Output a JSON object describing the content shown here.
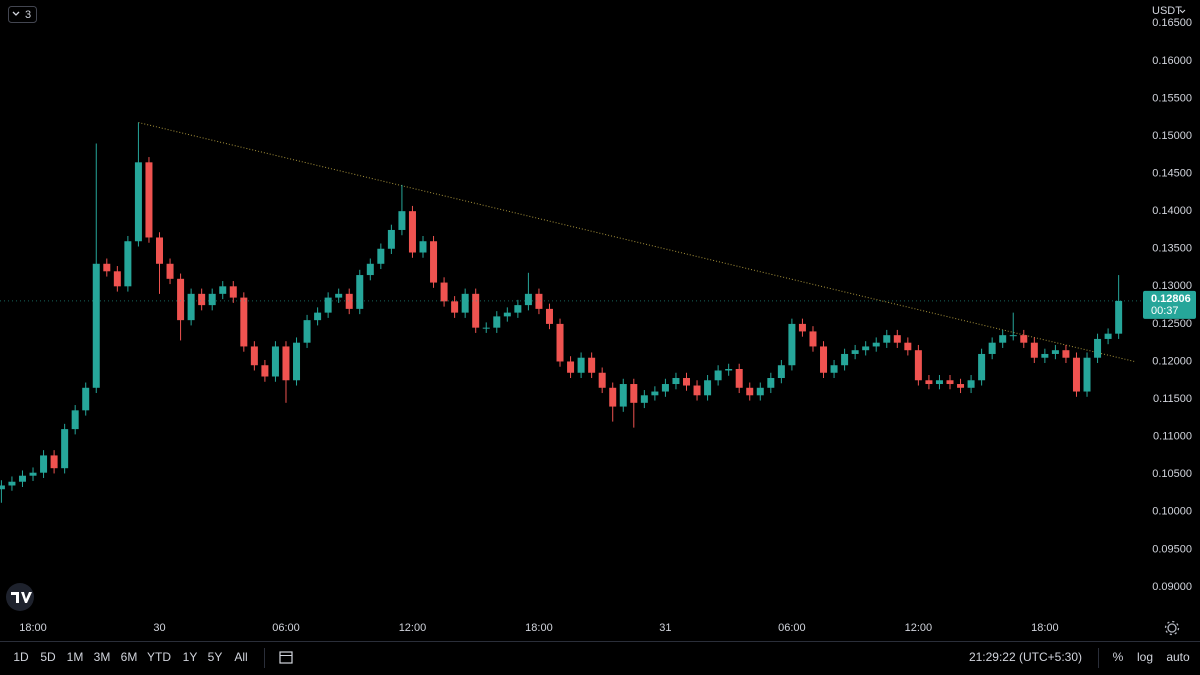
{
  "toolbar": {
    "interval_count": "3",
    "ranges": [
      "1D",
      "5D",
      "1M",
      "3M",
      "6M",
      "YTD",
      "1Y",
      "5Y",
      "All"
    ],
    "time": "21:29:22 (UTC+5:30)",
    "buttons": [
      "%",
      "log",
      "auto"
    ]
  },
  "chart_data": {
    "type": "candlestick",
    "currency": "USDT",
    "log_scale": false,
    "grid": false,
    "up_color": "#26a69a",
    "down_color": "#ef5350",
    "trendline_color": "#a8943c",
    "categories": [
      null,
      null,
      null,
      "18:00",
      null,
      null,
      null,
      null,
      null,
      null,
      null,
      null,
      null,
      null,
      null,
      "30",
      null,
      null,
      null,
      null,
      null,
      null,
      null,
      null,
      null,
      null,
      null,
      "06:00",
      null,
      null,
      null,
      null,
      null,
      null,
      null,
      null,
      null,
      null,
      null,
      "12:00",
      null,
      null,
      null,
      null,
      null,
      null,
      null,
      null,
      null,
      null,
      null,
      "18:00",
      null,
      null,
      null,
      null,
      null,
      null,
      null,
      null,
      null,
      null,
      null,
      "31",
      null,
      null,
      null,
      null,
      null,
      null,
      null,
      null,
      null,
      null,
      null,
      "06:00",
      null,
      null,
      null,
      null,
      null,
      null,
      null,
      null,
      null,
      null,
      null,
      "12:00",
      null,
      null,
      null,
      null,
      null,
      null,
      null,
      null,
      null,
      null,
      null,
      "18:00",
      null,
      null,
      null,
      null,
      null,
      null,
      null
    ],
    "open": [
      0.103,
      0.1035,
      0.104,
      0.1048,
      0.1052,
      0.1075,
      0.1058,
      0.111,
      0.1135,
      0.1165,
      0.133,
      0.132,
      0.13,
      0.136,
      0.1465,
      0.1365,
      0.133,
      0.131,
      0.1255,
      0.129,
      0.1275,
      0.129,
      0.13,
      0.1285,
      0.122,
      0.1195,
      0.118,
      0.122,
      0.1175,
      0.1225,
      0.1255,
      0.1265,
      0.1285,
      0.129,
      0.127,
      0.1315,
      0.133,
      0.135,
      0.1375,
      0.14,
      0.1345,
      0.136,
      0.1305,
      0.128,
      0.1265,
      0.129,
      0.1245,
      0.1245,
      0.126,
      0.1265,
      0.1275,
      0.129,
      0.127,
      0.125,
      0.12,
      0.1185,
      0.1205,
      0.1185,
      0.1165,
      0.114,
      0.117,
      0.1145,
      0.1155,
      0.116,
      0.117,
      0.1178,
      0.1168,
      0.1155,
      0.1175,
      0.1188,
      0.119,
      0.1165,
      0.1155,
      0.1165,
      0.1178,
      0.1195,
      0.125,
      0.124,
      0.122,
      0.1185,
      0.1195,
      0.121,
      0.1215,
      0.122,
      0.1225,
      0.1235,
      0.1225,
      0.1215,
      0.1175,
      0.117,
      0.1175,
      0.117,
      0.1165,
      0.1175,
      0.121,
      0.1225,
      0.1235,
      0.1235,
      0.1225,
      0.1205,
      0.121,
      0.1215,
      0.1205,
      0.116,
      0.1205,
      0.123,
      0.1237
    ],
    "high": [
      0.1042,
      0.1047,
      0.1055,
      0.1059,
      0.1082,
      0.1082,
      0.1117,
      0.1142,
      0.1172,
      0.149,
      0.1337,
      0.1327,
      0.1367,
      0.1518,
      0.1472,
      0.1372,
      0.1337,
      0.1317,
      0.1297,
      0.1297,
      0.1297,
      0.1307,
      0.1307,
      0.1292,
      0.1227,
      0.1202,
      0.1227,
      0.1227,
      0.1232,
      0.1262,
      0.1272,
      0.1292,
      0.1297,
      0.1297,
      0.1322,
      0.1337,
      0.1357,
      0.1382,
      0.1435,
      0.1407,
      0.1367,
      0.1367,
      0.1312,
      0.1287,
      0.1297,
      0.1297,
      0.1252,
      0.1267,
      0.1272,
      0.1282,
      0.1318,
      0.1297,
      0.1277,
      0.1257,
      0.1207,
      0.1212,
      0.1212,
      0.1192,
      0.1172,
      0.1177,
      0.1177,
      0.1162,
      0.1167,
      0.1177,
      0.1185,
      0.1185,
      0.1175,
      0.1182,
      0.1195,
      0.1197,
      0.1197,
      0.1172,
      0.1172,
      0.1185,
      0.1202,
      0.1257,
      0.1257,
      0.1247,
      0.1227,
      0.1202,
      0.1217,
      0.1222,
      0.1227,
      0.1232,
      0.1242,
      0.1242,
      0.1232,
      0.1222,
      0.1182,
      0.1182,
      0.1182,
      0.1177,
      0.1182,
      0.1217,
      0.1232,
      0.1242,
      0.1265,
      0.1242,
      0.1232,
      0.1217,
      0.1222,
      0.1222,
      0.1212,
      0.1212,
      0.1237,
      0.1244,
      0.1315
    ],
    "low": [
      0.1012,
      0.1028,
      0.1033,
      0.1041,
      0.1045,
      0.1051,
      0.1051,
      0.1103,
      0.1128,
      0.1158,
      0.1313,
      0.1293,
      0.1293,
      0.1353,
      0.1358,
      0.129,
      0.1303,
      0.1228,
      0.1248,
      0.1268,
      0.1268,
      0.1283,
      0.1278,
      0.1213,
      0.1188,
      0.1173,
      0.1173,
      0.1145,
      0.1168,
      0.1218,
      0.1248,
      0.1258,
      0.1278,
      0.1263,
      0.1263,
      0.1308,
      0.1323,
      0.1343,
      0.1368,
      0.1338,
      0.1338,
      0.1298,
      0.1273,
      0.1258,
      0.1258,
      0.1238,
      0.1238,
      0.1238,
      0.1253,
      0.1258,
      0.1268,
      0.1263,
      0.1243,
      0.1193,
      0.1178,
      0.1178,
      0.1178,
      0.1158,
      0.112,
      0.1133,
      0.1112,
      0.1138,
      0.1148,
      0.1153,
      0.1163,
      0.1161,
      0.1148,
      0.1148,
      0.1168,
      0.1181,
      0.1158,
      0.1148,
      0.1148,
      0.1158,
      0.1171,
      0.1188,
      0.1233,
      0.1213,
      0.1178,
      0.1178,
      0.1188,
      0.1203,
      0.1208,
      0.1213,
      0.1218,
      0.1218,
      0.1208,
      0.1168,
      0.1163,
      0.1163,
      0.1163,
      0.1158,
      0.1158,
      0.1168,
      0.1203,
      0.1218,
      0.1228,
      0.1218,
      0.1198,
      0.1198,
      0.1203,
      0.1198,
      0.1153,
      0.1153,
      0.1198,
      0.1223,
      0.123
    ],
    "close": [
      0.1035,
      0.104,
      0.1048,
      0.1052,
      0.1075,
      0.1058,
      0.111,
      0.1135,
      0.1165,
      0.133,
      0.132,
      0.13,
      0.136,
      0.1465,
      0.1365,
      0.133,
      0.131,
      0.1255,
      0.129,
      0.1275,
      0.129,
      0.13,
      0.1285,
      0.122,
      0.1195,
      0.118,
      0.122,
      0.1175,
      0.1225,
      0.1255,
      0.1265,
      0.1285,
      0.129,
      0.127,
      0.1315,
      0.133,
      0.135,
      0.1375,
      0.14,
      0.1345,
      0.136,
      0.1305,
      0.128,
      0.1265,
      0.129,
      0.1245,
      0.1245,
      0.126,
      0.1265,
      0.1275,
      0.129,
      0.127,
      0.125,
      0.12,
      0.1185,
      0.1205,
      0.1185,
      0.1165,
      0.114,
      0.117,
      0.1145,
      0.1155,
      0.116,
      0.117,
      0.1178,
      0.1168,
      0.1155,
      0.1175,
      0.1188,
      0.119,
      0.1165,
      0.1155,
      0.1165,
      0.1178,
      0.1195,
      0.125,
      0.124,
      0.122,
      0.1185,
      0.1195,
      0.121,
      0.1215,
      0.122,
      0.1225,
      0.1235,
      0.1225,
      0.1215,
      0.1175,
      0.117,
      0.1175,
      0.117,
      0.1165,
      0.1175,
      0.121,
      0.1225,
      0.1235,
      0.1235,
      0.1225,
      0.1205,
      0.121,
      0.1215,
      0.1205,
      0.116,
      0.1205,
      0.123,
      0.1237,
      0.12806
    ],
    "last_price": 0.12806,
    "countdown": "00:37",
    "trendline": {
      "start": [
        13,
        0.1518
      ],
      "end": [
        107.5,
        0.12
      ]
    },
    "ylim": [
      0.0856,
      0.1681
    ],
    "yticks": [
      {
        "value": 0.09,
        "label": "0.09000"
      },
      {
        "value": 0.095,
        "label": "0.09500"
      },
      {
        "value": 0.1,
        "label": "0.10000"
      },
      {
        "value": 0.105,
        "label": "0.10500"
      },
      {
        "value": 0.11,
        "label": "0.11000"
      },
      {
        "value": 0.115,
        "label": "0.11500"
      },
      {
        "value": 0.12,
        "label": "0.12000"
      },
      {
        "value": 0.125,
        "label": "0.12500"
      },
      {
        "value": 0.13,
        "label": "0.13000"
      },
      {
        "value": 0.135,
        "label": "0.13500"
      },
      {
        "value": 0.14,
        "label": "0.14000"
      },
      {
        "value": 0.145,
        "label": "0.14500"
      },
      {
        "value": 0.15,
        "label": "0.15000"
      },
      {
        "value": 0.155,
        "label": "0.15500"
      },
      {
        "value": 0.16,
        "label": "0.16000"
      },
      {
        "value": 0.165,
        "label": "0.16500"
      }
    ]
  }
}
